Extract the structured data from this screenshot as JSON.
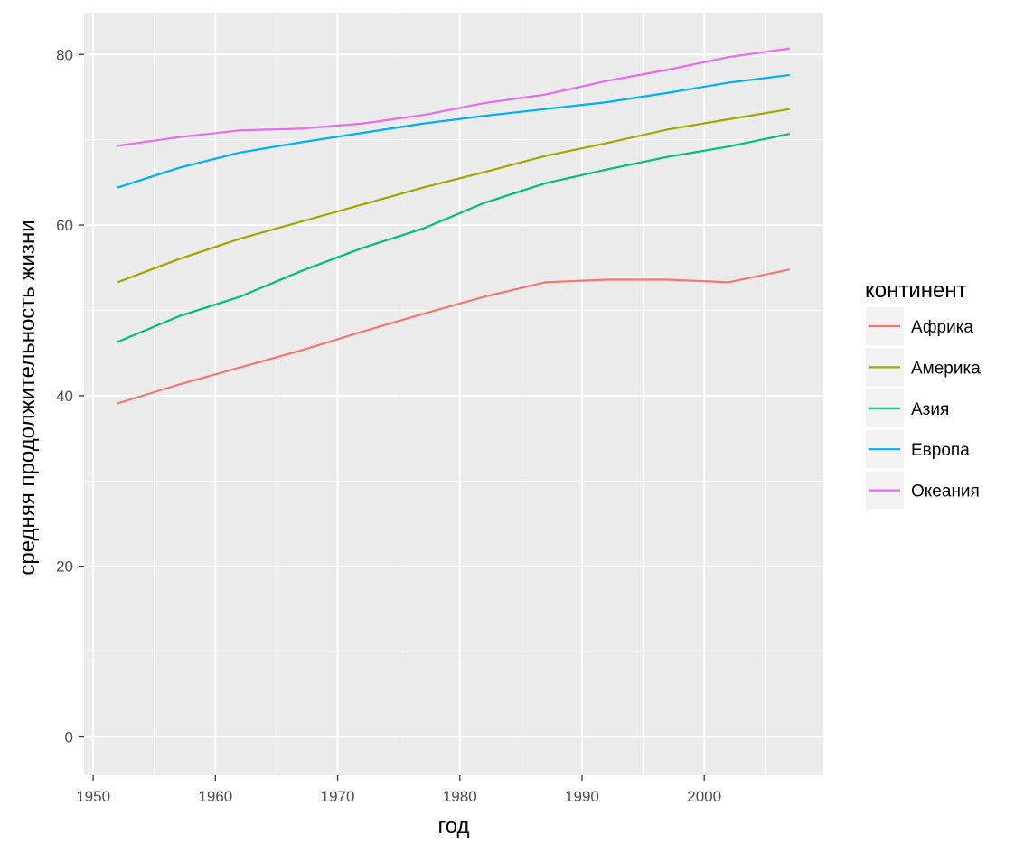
{
  "chart_data": {
    "type": "line",
    "xlabel": "год",
    "ylabel": "средняя продолжительность жизни",
    "x": [
      1952,
      1957,
      1962,
      1967,
      1972,
      1977,
      1982,
      1987,
      1992,
      1997,
      2002,
      2007
    ],
    "xlim": [
      1949.25,
      2009.75
    ],
    "ylim": [
      -4.5,
      84.9
    ],
    "x_ticks": [
      1950,
      1960,
      1970,
      1980,
      1990,
      2000
    ],
    "x_tick_labels": [
      "1950",
      "1960",
      "1970",
      "1980",
      "1990",
      "2000"
    ],
    "y_ticks": [
      0,
      20,
      40,
      60,
      80
    ],
    "y_tick_labels": [
      "0",
      "20",
      "40",
      "60",
      "80"
    ],
    "grid": true,
    "legend": {
      "title": "континент",
      "placement": "right"
    },
    "series": [
      {
        "name": "Африка",
        "color": "#F8766D",
        "values": [
          39.1,
          41.3,
          43.3,
          45.3,
          47.5,
          49.6,
          51.6,
          53.3,
          53.6,
          53.6,
          53.3,
          54.8
        ]
      },
      {
        "name": "Америка",
        "color": "#A3A500",
        "values": [
          53.3,
          56.0,
          58.4,
          60.4,
          62.4,
          64.4,
          66.2,
          68.1,
          69.6,
          71.2,
          72.4,
          73.6
        ]
      },
      {
        "name": "Азия",
        "color": "#00BF7D",
        "values": [
          46.3,
          49.3,
          51.6,
          54.6,
          57.3,
          59.6,
          62.6,
          64.9,
          66.5,
          68.0,
          69.2,
          70.7
        ]
      },
      {
        "name": "Европа",
        "color": "#00B0F6",
        "values": [
          64.4,
          66.7,
          68.5,
          69.7,
          70.8,
          71.9,
          72.8,
          73.6,
          74.4,
          75.5,
          76.7,
          77.6
        ]
      },
      {
        "name": "Океания",
        "color": "#E76BF3",
        "values": [
          69.3,
          70.3,
          71.1,
          71.3,
          71.9,
          72.9,
          74.3,
          75.3,
          76.9,
          78.2,
          79.7,
          80.7
        ]
      }
    ]
  }
}
